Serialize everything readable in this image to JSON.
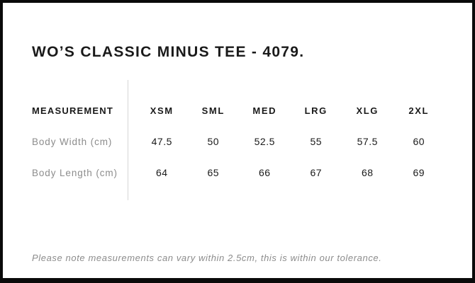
{
  "title": "WO’S CLASSIC MINUS TEE - 4079.",
  "table": {
    "measurement_header": "MEASUREMENT",
    "sizes": [
      "XSM",
      "SML",
      "MED",
      "LRG",
      "XLG",
      "2XL"
    ],
    "rows": [
      {
        "label": "Body Width (cm)",
        "values": [
          "47.5",
          "50",
          "52.5",
          "55",
          "57.5",
          "60"
        ]
      },
      {
        "label": "Body Length (cm)",
        "values": [
          "64",
          "65",
          "66",
          "67",
          "68",
          "69"
        ]
      }
    ]
  },
  "note": "Please note measurements can vary within 2.5cm, this is within our tolerance.",
  "colors": {
    "text": "#1a1a1a",
    "muted": "#8c8c8c",
    "divider": "#d6d6d6",
    "border": "#0a0a0a",
    "background": "#ffffff"
  }
}
